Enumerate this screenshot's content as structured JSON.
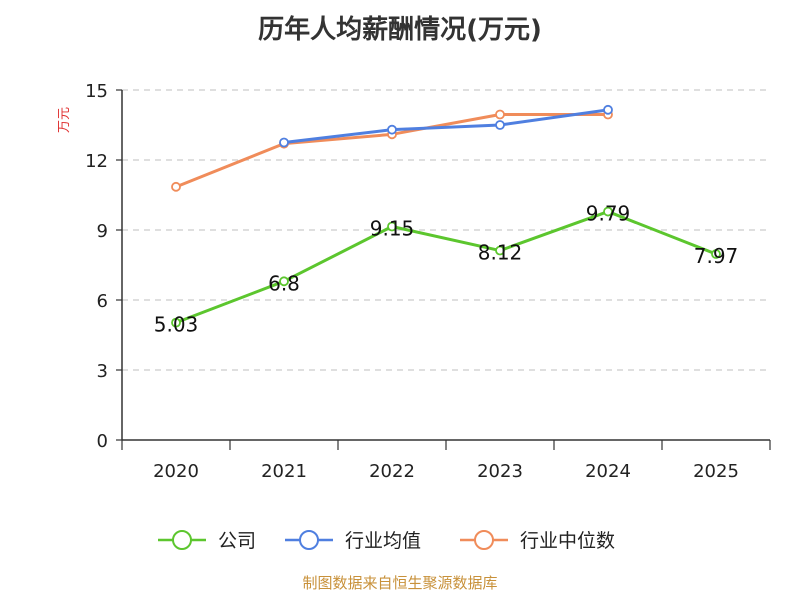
{
  "chart_data": {
    "type": "line",
    "title": "历年人均薪酬情况(万元)",
    "ylabel": "万元",
    "xlabel": "",
    "categories": [
      "2020",
      "2021",
      "2022",
      "2023",
      "2024",
      "2025"
    ],
    "ylim": [
      0,
      15
    ],
    "yticks": [
      0,
      3,
      6,
      9,
      12,
      15
    ],
    "grid": "horizontal dashed",
    "legend_position": "bottom",
    "series": [
      {
        "name": "公司",
        "color": "#5cc62e",
        "values": [
          5.03,
          6.8,
          9.15,
          8.12,
          9.79,
          7.97
        ],
        "labels": [
          "5.03",
          "6.8",
          "9.15",
          "8.12",
          "9.79",
          "7.97"
        ]
      },
      {
        "name": "行业均值",
        "color": "#4f7fe0",
        "values": [
          null,
          12.75,
          13.3,
          13.5,
          14.15,
          null
        ]
      },
      {
        "name": "行业中位数",
        "color": "#f08c5a",
        "values": [
          10.85,
          12.7,
          13.1,
          13.95,
          13.95,
          null
        ]
      }
    ]
  },
  "footer": {
    "source": "制图数据来自恒生聚源数据库"
  }
}
